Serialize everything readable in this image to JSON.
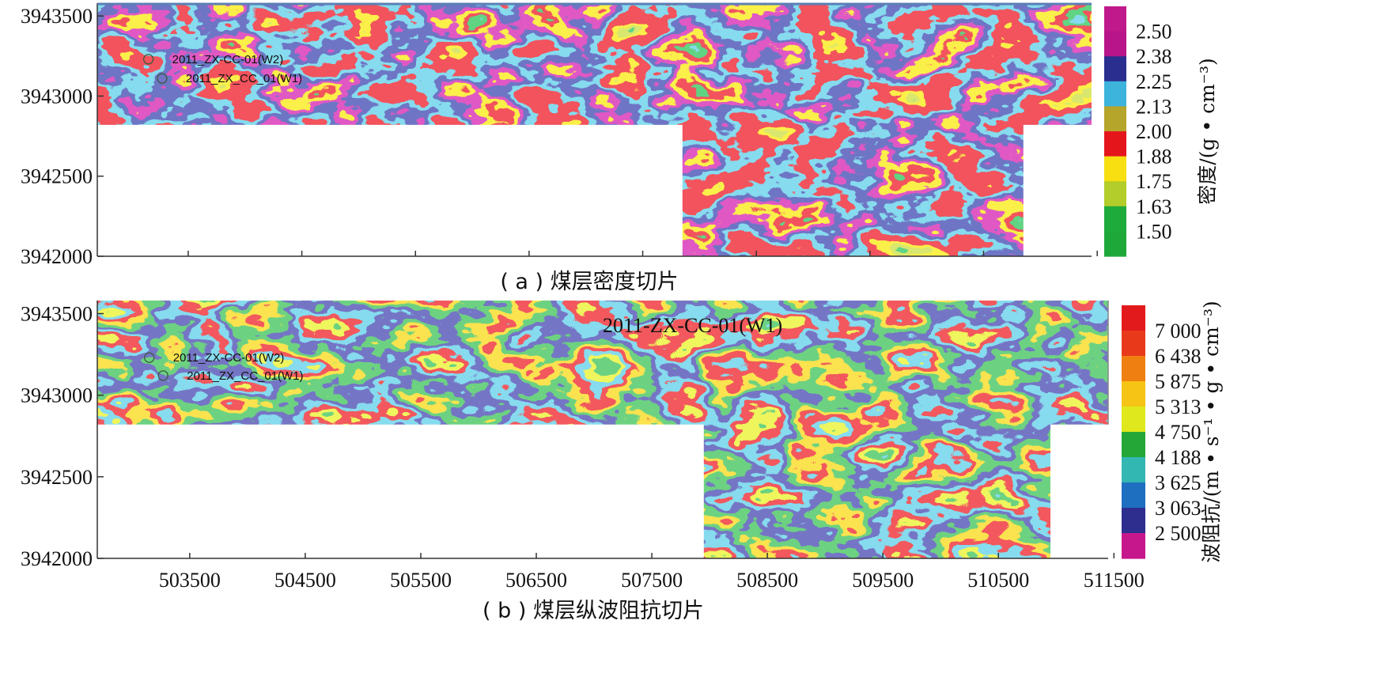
{
  "chart_data": [
    {
      "type": "heatmap",
      "caption": "( a ) 煤层密度切片",
      "xlabel": "",
      "ylabel": "",
      "xlim": [
        502700,
        511450
      ],
      "ylim": [
        3942000,
        3943580
      ],
      "x_ticks": [
        503500,
        504500,
        505500,
        506500,
        507500,
        508500,
        509500,
        510500,
        511500
      ],
      "y_ticks": [
        3943500,
        3943000,
        3942500,
        3942000
      ],
      "colorbar": {
        "title": "密度/(g • cm⁻³)",
        "labels": [
          "2.50",
          "2.38",
          "2.25",
          "2.13",
          "2.00",
          "1.88",
          "1.75",
          "1.63",
          "1.50"
        ],
        "colors": [
          "#c0198c",
          "#b8158a",
          "#2a2f8f",
          "#3db4dc",
          "#b5a52a",
          "#e4161c",
          "#f7df12",
          "#b3cd2a",
          "#1faa3c",
          "#1fa83a"
        ]
      },
      "survey_outline": [
        [
          502700,
          3943580
        ],
        [
          511450,
          3943580
        ],
        [
          511450,
          3942820
        ],
        [
          510850,
          3942820
        ],
        [
          510850,
          3942000
        ],
        [
          507850,
          3942000
        ],
        [
          507850,
          3942820
        ],
        [
          502700,
          3942820
        ]
      ],
      "wells": [
        {
          "name": "2011_ZX-CC-01(W2)",
          "x": 503150,
          "y": 3943230
        },
        {
          "name": "2011_ZX_CC_01(W1)",
          "x": 503270,
          "y": 3943110
        }
      ],
      "annotation": "",
      "palette_order": [
        "#1fa83a",
        "#b3cd2a",
        "#f7df12",
        "#e4161c",
        "#e4161c",
        "#3db4dc",
        "#2a2f8f",
        "#c0198c",
        "#f7df12",
        "#e4161c",
        "#1fa83a",
        "#3db4dc"
      ]
    },
    {
      "type": "heatmap",
      "caption": "( b ) 煤层纵波阻抗切片",
      "xlabel": "",
      "ylabel": "",
      "xlim": [
        502700,
        511450
      ],
      "ylim": [
        3942000,
        3943580
      ],
      "x_ticks": [
        503500,
        504500,
        505500,
        506500,
        507500,
        508500,
        509500,
        510500,
        511500
      ],
      "y_ticks": [
        3943500,
        3943000,
        3942500,
        3942000
      ],
      "colorbar": {
        "title": "波阻抗/(m • s⁻¹ • g • cm⁻³)",
        "labels": [
          "7 000",
          "6 438",
          "5 875",
          "5 313",
          "4 750",
          "4 188",
          "3 625",
          "3 063",
          "2 500"
        ],
        "colors": [
          "#e31a1c",
          "#e83a1a",
          "#f07f12",
          "#f6c414",
          "#dfe81d",
          "#25a738",
          "#33b7b2",
          "#1f6fc1",
          "#2d2e8e",
          "#c7178c"
        ]
      },
      "survey_outline": [
        [
          502700,
          3943580
        ],
        [
          511450,
          3943580
        ],
        [
          511450,
          3942820
        ],
        [
          510950,
          3942820
        ],
        [
          510950,
          3942000
        ],
        [
          507950,
          3942000
        ],
        [
          507950,
          3942820
        ],
        [
          502700,
          3942820
        ]
      ],
      "wells": [
        {
          "name": "2011_ZX-CC-01(W2)",
          "x": 503150,
          "y": 3943230
        },
        {
          "name": "2011_ZX_CC_01(W1)",
          "x": 503270,
          "y": 3943120
        }
      ],
      "annotation": "2011-ZX-CC-01(W1)",
      "palette_order": [
        "#3db4dc",
        "#25a738",
        "#dfe81d",
        "#e31a1c",
        "#3db4dc",
        "#2d2e8e",
        "#25a738",
        "#f6c414",
        "#e31a1c",
        "#3db4dc",
        "#dfe81d",
        "#25a738"
      ]
    }
  ]
}
